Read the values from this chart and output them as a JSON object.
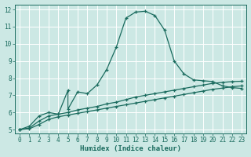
{
  "xlabel": "Humidex (Indice chaleur)",
  "bg_color": "#cce8e4",
  "grid_color": "#ffffff",
  "line_color": "#1a6b5e",
  "xlim": [
    -0.5,
    23.5
  ],
  "ylim": [
    4.8,
    12.3
  ],
  "xticks": [
    0,
    1,
    2,
    3,
    4,
    5,
    6,
    7,
    8,
    9,
    10,
    11,
    12,
    13,
    14,
    15,
    16,
    17,
    18,
    19,
    20,
    21,
    22,
    23
  ],
  "yticks": [
    5,
    6,
    7,
    8,
    9,
    10,
    11,
    12
  ],
  "line1_x": [
    0,
    1,
    2,
    3,
    4,
    5,
    5,
    6,
    7,
    8,
    9,
    10,
    11,
    12,
    13,
    14,
    15,
    16,
    17,
    18,
    19,
    20,
    21,
    22,
    23
  ],
  "line1_y": [
    5.0,
    5.2,
    5.8,
    6.0,
    5.9,
    7.3,
    6.2,
    7.2,
    7.1,
    7.6,
    8.5,
    9.8,
    11.5,
    11.85,
    11.9,
    11.65,
    10.8,
    9.0,
    8.25,
    7.9,
    7.85,
    7.8,
    7.55,
    7.45,
    7.4
  ],
  "line2_x": [
    0,
    1,
    2,
    3,
    4,
    5,
    6,
    7,
    8,
    9,
    10,
    11,
    12,
    13,
    14,
    15,
    16,
    17,
    18,
    19,
    20,
    21,
    22,
    23
  ],
  "line2_y": [
    5.0,
    5.1,
    5.5,
    5.8,
    5.9,
    6.0,
    6.15,
    6.25,
    6.35,
    6.5,
    6.6,
    6.75,
    6.9,
    7.0,
    7.1,
    7.2,
    7.3,
    7.4,
    7.5,
    7.6,
    7.7,
    7.75,
    7.8,
    7.82
  ],
  "line3_x": [
    0,
    1,
    2,
    3,
    4,
    5,
    6,
    7,
    8,
    9,
    10,
    11,
    12,
    13,
    14,
    15,
    16,
    17,
    18,
    19,
    20,
    21,
    22,
    23
  ],
  "line3_y": [
    5.0,
    5.05,
    5.3,
    5.6,
    5.75,
    5.85,
    5.95,
    6.05,
    6.15,
    6.25,
    6.35,
    6.45,
    6.55,
    6.65,
    6.75,
    6.85,
    6.95,
    7.05,
    7.15,
    7.25,
    7.35,
    7.42,
    7.5,
    7.55
  ]
}
